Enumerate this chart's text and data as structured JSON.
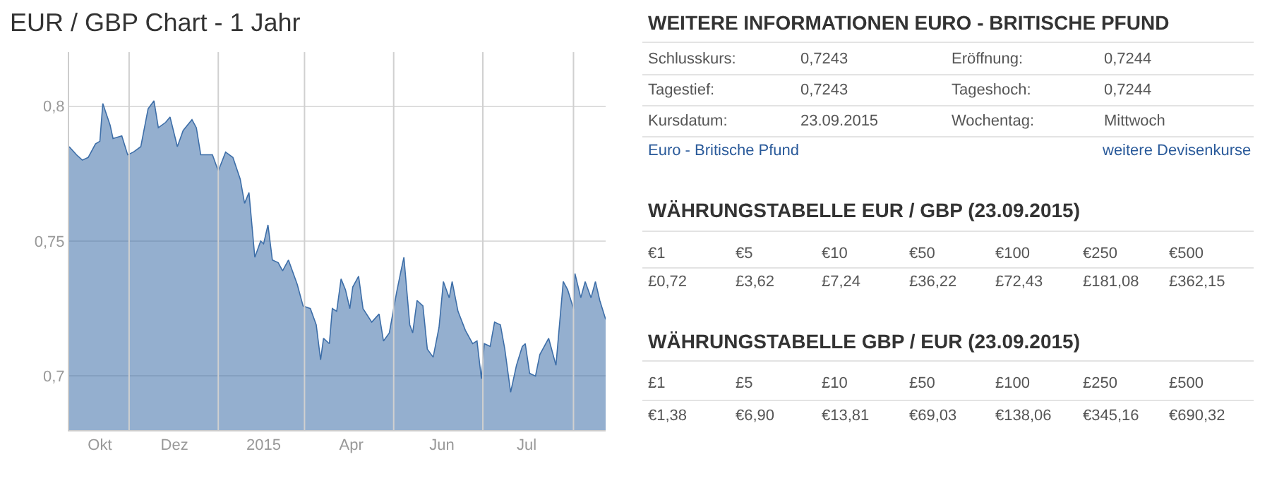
{
  "chart_data": [
    {
      "type": "area",
      "title": "EUR / GBP Chart - 1 Jahr",
      "x": [
        "2014-09-21",
        "2014-09-26",
        "2014-09-30",
        "2014-10-04",
        "2014-10-09",
        "2014-10-12",
        "2014-10-14",
        "2014-10-19",
        "2014-10-21",
        "2014-10-27",
        "2014-10-31",
        "2014-11-04",
        "2014-11-09",
        "2014-11-14",
        "2014-11-18",
        "2014-11-21",
        "2014-11-26",
        "2014-11-29",
        "2014-12-04",
        "2014-12-08",
        "2014-12-14",
        "2014-12-17",
        "2014-12-20",
        "2014-12-28",
        "2015-01-01",
        "2015-01-06",
        "2015-01-11",
        "2015-01-16",
        "2015-01-19",
        "2015-01-22",
        "2015-01-26",
        "2015-01-30",
        "2015-02-01",
        "2015-02-04",
        "2015-02-07",
        "2015-02-11",
        "2015-02-14",
        "2015-02-18",
        "2015-02-24",
        "2015-02-28",
        "2015-03-05",
        "2015-03-09",
        "2015-03-12",
        "2015-03-14",
        "2015-03-18",
        "2015-03-20",
        "2015-03-23",
        "2015-03-26",
        "2015-03-29",
        "2015-04-01",
        "2015-04-03",
        "2015-04-07",
        "2015-04-10",
        "2015-04-16",
        "2015-04-21",
        "2015-04-24",
        "2015-04-28",
        "2015-05-03",
        "2015-05-06",
        "2015-05-08",
        "2015-05-12",
        "2015-05-14",
        "2015-05-17",
        "2015-05-21",
        "2015-05-24",
        "2015-05-28",
        "2015-06-01",
        "2015-06-04",
        "2015-06-08",
        "2015-06-10",
        "2015-06-14",
        "2015-06-19",
        "2015-06-24",
        "2015-06-27",
        "2015-06-30",
        "2015-07-02",
        "2015-07-06",
        "2015-07-09",
        "2015-07-13",
        "2015-07-16",
        "2015-07-20",
        "2015-07-24",
        "2015-07-28",
        "2015-07-30",
        "2015-08-02",
        "2015-08-06",
        "2015-08-09",
        "2015-08-15",
        "2015-08-20",
        "2015-08-25",
        "2015-08-28",
        "2015-09-01",
        "2015-09-02",
        "2015-09-06",
        "2015-09-09",
        "2015-09-13",
        "2015-09-16",
        "2015-09-19",
        "2015-09-23"
      ],
      "series": [
        {
          "color": "#3d6ea8",
          "values": [
            0.785,
            0.782,
            0.78,
            0.781,
            0.786,
            0.787,
            0.801,
            0.793,
            0.788,
            0.789,
            0.782,
            0.783,
            0.785,
            0.799,
            0.802,
            0.792,
            0.794,
            0.796,
            0.785,
            0.791,
            0.795,
            0.792,
            0.782,
            0.782,
            0.776,
            0.783,
            0.781,
            0.773,
            0.764,
            0.768,
            0.744,
            0.75,
            0.749,
            0.756,
            0.743,
            0.742,
            0.739,
            0.743,
            0.734,
            0.726,
            0.725,
            0.719,
            0.706,
            0.714,
            0.712,
            0.725,
            0.724,
            0.736,
            0.732,
            0.725,
            0.733,
            0.737,
            0.725,
            0.72,
            0.723,
            0.713,
            0.716,
            0.731,
            0.739,
            0.744,
            0.719,
            0.716,
            0.728,
            0.726,
            0.71,
            0.707,
            0.718,
            0.735,
            0.729,
            0.735,
            0.724,
            0.717,
            0.712,
            0.713,
            0.699,
            0.712,
            0.711,
            0.72,
            0.719,
            0.71,
            0.694,
            0.704,
            0.711,
            0.712,
            0.701,
            0.7,
            0.708,
            0.714,
            0.704,
            0.735,
            0.732,
            0.725,
            0.738,
            0.729,
            0.735,
            0.729,
            0.735,
            0.728,
            0.721
          ]
        }
      ],
      "xlim": [
        "2014-09-21",
        "2015-09-23"
      ],
      "xticks": [
        {
          "value": "2014-10-12",
          "label": "Okt"
        },
        {
          "value": "2014-11-01",
          "label": null
        },
        {
          "value": "2014-12-02",
          "label": "Dez"
        },
        {
          "value": "2015-01-01",
          "label": null
        },
        {
          "value": "2015-02-01",
          "label": "2015"
        },
        {
          "value": "2015-03-01",
          "label": null
        },
        {
          "value": "2015-04-02",
          "label": "Apr"
        },
        {
          "value": "2015-05-01",
          "label": null
        },
        {
          "value": "2015-06-03",
          "label": "Jun"
        },
        {
          "value": "2015-07-01",
          "label": null
        },
        {
          "value": "2015-07-31",
          "label": "Jul"
        },
        {
          "value": "2015-09-01",
          "label": null
        }
      ],
      "ylim": [
        0.68,
        0.82
      ],
      "yticks": [
        {
          "value": 0.7,
          "label": "0,7"
        },
        {
          "value": 0.75,
          "label": "0,75"
        },
        {
          "value": 0.8,
          "label": "0,8"
        }
      ],
      "grid": true
    },
    {
      "type": "other",
      "annotations": [
        "WEITERE INFORMATIONEN EURO - BRITISCHE PFUND",
        "Schlusskurs:",
        "0,7243",
        "Eröffnung:",
        "0,7244",
        "Tagestief:",
        "0,7243",
        "Tageshoch:",
        "0,7244",
        "Kursdatum:",
        "23.09.2015",
        "Wochentag:",
        "Mittwoch",
        "Euro - Britische Pfund",
        "weitere Devisenkurse",
        "WÄHRUNGSTABELLE EUR / GBP (23.09.2015)",
        "€1",
        "€5",
        "€10",
        "€50",
        "€100",
        "€250",
        "€500",
        "£0,72",
        "£3,62",
        "£7,24",
        "£36,22",
        "£72,43",
        "£181,08",
        "£362,15",
        "WÄHRUNGSTABELLE GBP / EUR (23.09.2015)",
        "£1",
        "£5",
        "£10",
        "£50",
        "£100",
        "£250",
        "£500",
        "€1,38",
        "€6,90",
        "€13,81",
        "€69,03",
        "€138,06",
        "€345,16",
        "€690,32"
      ]
    }
  ]
}
